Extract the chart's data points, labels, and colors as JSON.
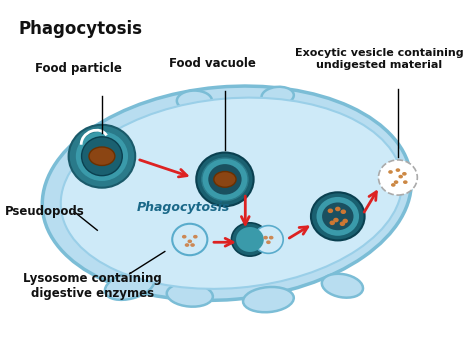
{
  "title": "Phagocytosis",
  "background_color": "#ffffff",
  "labels": {
    "food_particle": "Food particle",
    "food_vacuole": "Food vacuole",
    "exocytic": "Exocytic vesicle containing\nundigested material",
    "pseudopods": "Pseudopods",
    "phagocytosis": "Phagocytosis",
    "lysosome": "Lysosome containing\ndigestive enzymes"
  },
  "cell_color": "#a8d8ea",
  "cell_outline": "#7ab8d4",
  "cell_inner": "#c5e8f5",
  "arrow_color": "#dd2222",
  "line_color": "#111111"
}
